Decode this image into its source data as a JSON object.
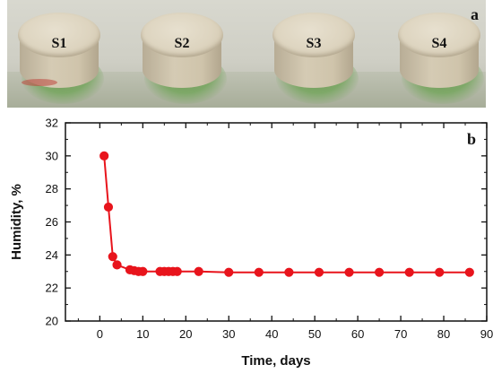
{
  "panel_a": {
    "letter": "a",
    "samples": [
      "S1",
      "S2",
      "S3",
      "S4"
    ]
  },
  "colors": {
    "series": "#e8141c",
    "axis": "#111111"
  },
  "chart_data": {
    "type": "line",
    "panel_letter": "b",
    "title": "",
    "xlabel": "Time, days",
    "ylabel": "Humidity, %",
    "xlim": [
      -8,
      90
    ],
    "ylim": [
      20,
      32
    ],
    "xticks": [
      0,
      10,
      20,
      30,
      40,
      50,
      60,
      70,
      80,
      90
    ],
    "yticks": [
      20,
      22,
      24,
      26,
      28,
      30,
      32
    ],
    "grid": false,
    "legend": "none",
    "series": [
      {
        "marker": "circle",
        "x": [
          1,
          2,
          3,
          4,
          7,
          8,
          9,
          10,
          14,
          15,
          16,
          17,
          18,
          23,
          30,
          37,
          44,
          51,
          58,
          65,
          72,
          79,
          86
        ],
        "y": [
          30.0,
          26.9,
          23.9,
          23.4,
          23.1,
          23.05,
          23.0,
          23.0,
          23.0,
          23.0,
          23.0,
          23.0,
          23.0,
          23.0,
          22.95,
          22.95,
          22.95,
          22.95,
          22.95,
          22.95,
          22.95,
          22.95,
          22.95
        ]
      }
    ]
  }
}
